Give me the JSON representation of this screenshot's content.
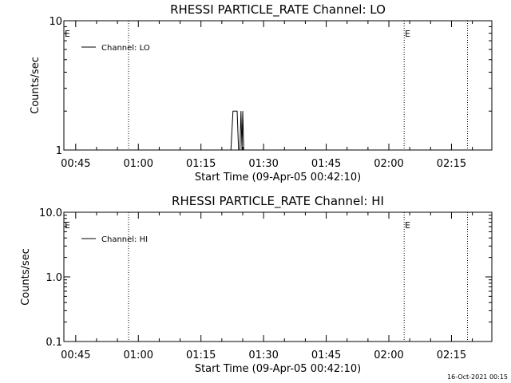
{
  "chart_data": [
    {
      "type": "line",
      "title": "RHESSI PARTICLE_RATE Channel: LO",
      "xlabel": "Start Time (09-Apr-05 00:42:10)",
      "ylabel": "Counts/sec",
      "y_scale": "log",
      "ylim": [
        1,
        10
      ],
      "y_ticks": [
        "1",
        "10"
      ],
      "xlim": [
        "00:42:10",
        "02:24:40"
      ],
      "x_ticks": [
        "00:45",
        "01:00",
        "01:15",
        "01:30",
        "01:45",
        "02:00",
        "02:15"
      ],
      "legend": {
        "position": "top-left",
        "entries": [
          "Channel: LO"
        ]
      },
      "markers": [
        {
          "time": "00:42:10",
          "label": "E"
        },
        {
          "time": "00:57:40",
          "label": ""
        },
        {
          "time": "02:03:40",
          "label": "E"
        },
        {
          "time": "02:18:50",
          "label": ""
        }
      ],
      "series": [
        {
          "name": "Channel: LO",
          "points": [
            [
              "01:21:40",
              1
            ],
            [
              "01:22:10",
              1
            ],
            [
              "01:22:40",
              2
            ],
            [
              "01:23:40",
              2
            ],
            [
              "01:24:00",
              1
            ],
            [
              "01:24:20",
              1
            ],
            [
              "01:24:35",
              2
            ],
            [
              "01:24:50",
              1
            ],
            [
              "01:25:00",
              2
            ],
            [
              "01:25:15",
              1
            ],
            [
              "01:25:30",
              1
            ]
          ]
        }
      ]
    },
    {
      "type": "line",
      "title": "RHESSI PARTICLE_RATE Channel: HI",
      "xlabel": "Start Time (09-Apr-05 00:42:10)",
      "ylabel": "Counts/sec",
      "y_scale": "log",
      "ylim": [
        0.1,
        10
      ],
      "y_ticks": [
        "0.1",
        "1.0",
        "10.0"
      ],
      "xlim": [
        "00:42:10",
        "02:24:40"
      ],
      "x_ticks": [
        "00:45",
        "01:00",
        "01:15",
        "01:30",
        "01:45",
        "02:00",
        "02:15"
      ],
      "legend": {
        "position": "top-left",
        "entries": [
          "Channel: HI"
        ]
      },
      "markers": [
        {
          "time": "00:42:10",
          "label": "E"
        },
        {
          "time": "00:57:40",
          "label": ""
        },
        {
          "time": "02:03:40",
          "label": "E"
        },
        {
          "time": "02:18:50",
          "label": ""
        }
      ],
      "series": [
        {
          "name": "Channel: HI",
          "points": []
        }
      ]
    }
  ],
  "footer": {
    "timestamp": "16-Oct-2021 00:15"
  }
}
